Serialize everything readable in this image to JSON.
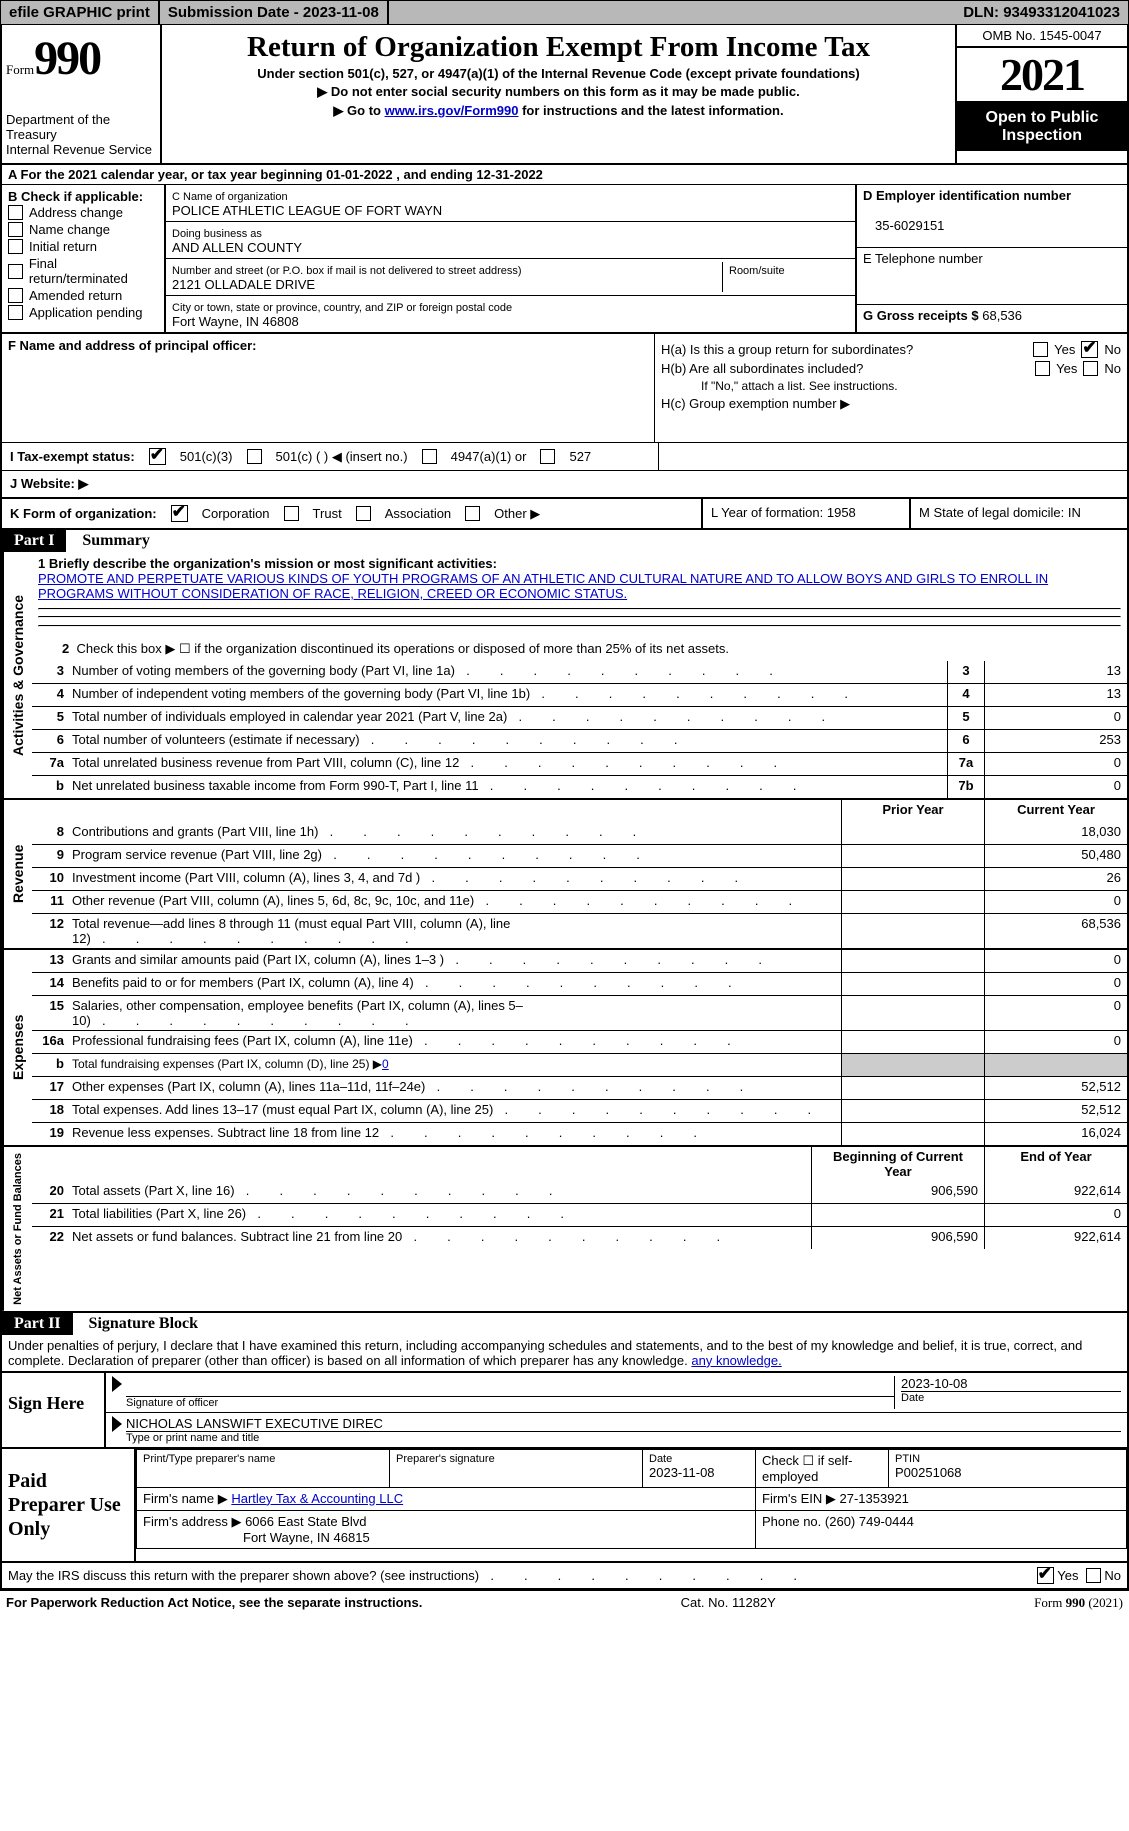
{
  "topbar": {
    "efile": "efile GRAPHIC print",
    "sub_label": "Submission Date - 2023-11-08",
    "dln_label": "DLN: 93493312041023"
  },
  "header": {
    "form_word": "Form",
    "form_num": "990",
    "dept": "Department of the Treasury",
    "irs": "Internal Revenue Service",
    "title": "Return of Organization Exempt From Income Tax",
    "sub": "Under section 501(c), 527, or 4947(a)(1) of the Internal Revenue Code (except private foundations)",
    "note1": "▶ Do not enter social security numbers on this form as it may be made public.",
    "note2_pre": "▶ Go to ",
    "note2_link": "www.irs.gov/Form990",
    "note2_post": " for instructions and the latest information.",
    "omb": "OMB No. 1545-0047",
    "year": "2021",
    "public1": "Open to Public",
    "public2": "Inspection"
  },
  "lineA": "A For the 2021 calendar year, or tax year beginning 01-01-2022    , and ending 12-31-2022",
  "B": {
    "title": "B Check if applicable:",
    "items": [
      "Address change",
      "Name change",
      "Initial return",
      "Final return/terminated",
      "Amended return",
      "Application pending"
    ]
  },
  "C": {
    "name_lbl": "C Name of organization",
    "name": "POLICE ATHLETIC LEAGUE OF FORT WAYN",
    "dba_lbl": "Doing business as",
    "dba": "AND ALLEN COUNTY",
    "street_lbl": "Number and street (or P.O. box if mail is not delivered to street address)",
    "room_lbl": "Room/suite",
    "street": "2121 OLLADALE DRIVE",
    "city_lbl": "City or town, state or province, country, and ZIP or foreign postal code",
    "city": "Fort Wayne, IN   46808"
  },
  "D": {
    "ein_lbl": "D Employer identification number",
    "ein": "35-6029151",
    "tel_lbl": "E Telephone number",
    "tel": "",
    "gross_lbl": "G Gross receipts $",
    "gross": "68,536"
  },
  "F": {
    "officer_lbl": "F  Name and address of principal officer:",
    "Ha": "H(a)  Is this a group return for subordinates?",
    "Hb": "H(b)  Are all subordinates included?",
    "Hb_note": "If \"No,\" attach a list. See instructions.",
    "Hc": "H(c)  Group exemption number ▶"
  },
  "I": {
    "label": "I   Tax-exempt status:",
    "opts": [
      "501(c)(3)",
      "501(c) (  ) ◀ (insert no.)",
      "4947(a)(1) or",
      "527"
    ]
  },
  "J": {
    "label": "J   Website: ▶"
  },
  "K": {
    "label": "K Form of organization:",
    "opts": [
      "Corporation",
      "Trust",
      "Association",
      "Other ▶"
    ],
    "L": "L Year of formation: 1958",
    "M": "M State of legal domicile: IN"
  },
  "part1": {
    "header": "Part I",
    "title": "Summary",
    "vlabels": [
      "Activities & Governance",
      "Revenue",
      "Expenses",
      "Net Assets or Fund Balances"
    ],
    "line1_lbl": "1  Briefly describe the organization's mission or most significant activities:",
    "line1_txt": "PROMOTE AND PERPETUATE VARIOUS KINDS OF YOUTH PROGRAMS OF AN ATHLETIC AND CULTURAL NATURE AND TO ALLOW BOYS AND GIRLS TO ENROLL IN PROGRAMS WITHOUT CONSIDERATION OF RACE, RELIGION, CREED OR ECONOMIC STATUS.",
    "line2": "Check this box ▶ ☐  if the organization discontinued its operations or disposed of more than 25% of its net assets.",
    "rows_gov": [
      {
        "n": "3",
        "t": "Number of voting members of the governing body (Part VI, line 1a)",
        "b": "3",
        "v": "13"
      },
      {
        "n": "4",
        "t": "Number of independent voting members of the governing body (Part VI, line 1b)",
        "b": "4",
        "v": "13"
      },
      {
        "n": "5",
        "t": "Total number of individuals employed in calendar year 2021 (Part V, line 2a)",
        "b": "5",
        "v": "0"
      },
      {
        "n": "6",
        "t": "Total number of volunteers (estimate if necessary)",
        "b": "6",
        "v": "253"
      },
      {
        "n": "7a",
        "t": "Total unrelated business revenue from Part VIII, column (C), line 12",
        "b": "7a",
        "v": "0"
      },
      {
        "n": "b",
        "t": "Net unrelated business taxable income from Form 990-T, Part I, line 11",
        "b": "7b",
        "v": "0"
      }
    ],
    "hdr_prior": "Prior Year",
    "hdr_curr": "Current Year",
    "rows_rev": [
      {
        "n": "8",
        "t": "Contributions and grants (Part VIII, line 1h)",
        "p": "",
        "c": "18,030"
      },
      {
        "n": "9",
        "t": "Program service revenue (Part VIII, line 2g)",
        "p": "",
        "c": "50,480"
      },
      {
        "n": "10",
        "t": "Investment income (Part VIII, column (A), lines 3, 4, and 7d )",
        "p": "",
        "c": "26"
      },
      {
        "n": "11",
        "t": "Other revenue (Part VIII, column (A), lines 5, 6d, 8c, 9c, 10c, and 11e)",
        "p": "",
        "c": "0"
      },
      {
        "n": "12",
        "t": "Total revenue—add lines 8 through 11 (must equal Part VIII, column (A), line 12)",
        "p": "",
        "c": "68,536"
      }
    ],
    "rows_exp": [
      {
        "n": "13",
        "t": "Grants and similar amounts paid (Part IX, column (A), lines 1–3 )",
        "p": "",
        "c": "0"
      },
      {
        "n": "14",
        "t": "Benefits paid to or for members (Part IX, column (A), line 4)",
        "p": "",
        "c": "0"
      },
      {
        "n": "15",
        "t": "Salaries, other compensation, employee benefits (Part IX, column (A), lines 5–10)",
        "p": "",
        "c": "0"
      },
      {
        "n": "16a",
        "t": "Professional fundraising fees (Part IX, column (A), line 11e)",
        "p": "",
        "c": "0"
      },
      {
        "n": "b",
        "t": "Total fundraising expenses (Part IX, column (D), line 25) ▶0",
        "p": "shade",
        "c": "shade"
      },
      {
        "n": "17",
        "t": "Other expenses (Part IX, column (A), lines 11a–11d, 11f–24e)",
        "p": "",
        "c": "52,512"
      },
      {
        "n": "18",
        "t": "Total expenses. Add lines 13–17 (must equal Part IX, column (A), line 25)",
        "p": "",
        "c": "52,512"
      },
      {
        "n": "19",
        "t": "Revenue less expenses. Subtract line 18 from line 12",
        "p": "",
        "c": "16,024"
      }
    ],
    "hdr_beg": "Beginning of Current Year",
    "hdr_end": "End of Year",
    "rows_net": [
      {
        "n": "20",
        "t": "Total assets (Part X, line 16)",
        "p": "906,590",
        "c": "922,614"
      },
      {
        "n": "21",
        "t": "Total liabilities (Part X, line 26)",
        "p": "",
        "c": "0"
      },
      {
        "n": "22",
        "t": "Net assets or fund balances. Subtract line 21 from line 20",
        "p": "906,590",
        "c": "922,614"
      }
    ]
  },
  "part2": {
    "header": "Part II",
    "title": "Signature Block",
    "decl": "Under penalties of perjury, I declare that I have examined this return, including accompanying schedules and statements, and to the best of my knowledge and belief, it is true, correct, and complete. Declaration of preparer (other than officer) is based on all information of which preparer has any knowledge.",
    "sign_here": "Sign Here",
    "sig_officer_lbl": "Signature of officer",
    "sig_date": "2023-10-08",
    "date_lbl": "Date",
    "name_title": "NICHOLAS LANSWIFT  EXECUTIVE DIREC",
    "name_title_lbl": "Type or print name and title",
    "paid": "Paid Preparer Use Only",
    "prep_name_lbl": "Print/Type preparer's name",
    "prep_sig_lbl": "Preparer's signature",
    "prep_date_lbl": "Date",
    "prep_date": "2023-11-08",
    "check_self": "Check ☐ if self-employed",
    "ptin_lbl": "PTIN",
    "ptin": "P00251068",
    "firm_name_lbl": "Firm's name    ▶",
    "firm_name": "Hartley Tax & Accounting LLC",
    "firm_ein_lbl": "Firm's EIN ▶",
    "firm_ein": "27-1353921",
    "firm_addr_lbl": "Firm's address ▶",
    "firm_addr1": "6066 East State Blvd",
    "firm_addr2": "Fort Wayne, IN   46815",
    "phone_lbl": "Phone no.",
    "phone": "(260) 749-0444",
    "discuss": "May the IRS discuss this return with the preparer shown above? (see instructions)",
    "yes": "Yes",
    "no": "No"
  },
  "footer": {
    "left": "For Paperwork Reduction Act Notice, see the separate instructions.",
    "mid": "Cat. No. 11282Y",
    "right": "Form 990 (2021)"
  }
}
